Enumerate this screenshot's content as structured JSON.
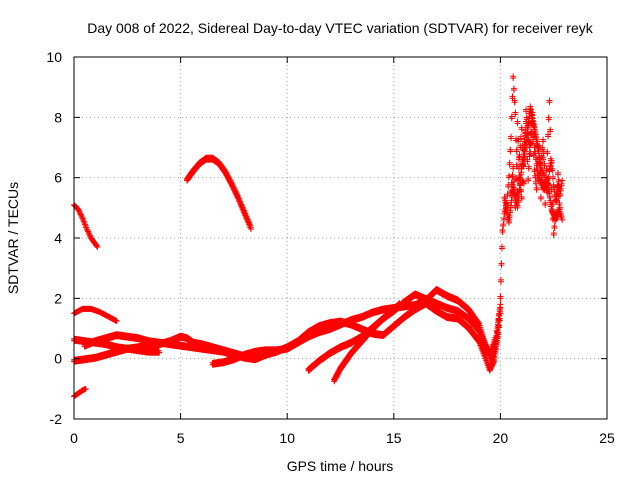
{
  "chart_data": {
    "type": "scatter",
    "title": "Day 008 of 2022, Sidereal Day-to-day VTEC variation (SDTVAR) for receiver reyk",
    "xlabel": "GPS time / hours",
    "ylabel": "SDTVAR / TECUs",
    "xlim": [
      0,
      25
    ],
    "ylim": [
      -2,
      10
    ],
    "xticks": [
      0,
      5,
      10,
      15,
      20,
      25
    ],
    "yticks": [
      -2,
      0,
      2,
      4,
      6,
      8,
      10
    ],
    "grid": true,
    "marker": "+",
    "color": "#ff0000",
    "segments": [
      [
        [
          0.0,
          5.1
        ],
        [
          0.2,
          4.95
        ],
        [
          0.4,
          4.65
        ],
        [
          0.6,
          4.3
        ],
        [
          0.8,
          4.0
        ],
        [
          1.0,
          3.8
        ],
        [
          1.1,
          3.7
        ]
      ],
      [
        [
          0.0,
          -1.25
        ],
        [
          0.2,
          -1.15
        ],
        [
          0.4,
          -1.05
        ],
        [
          0.55,
          -1.0
        ]
      ],
      [
        [
          0.0,
          1.5
        ],
        [
          0.4,
          1.65
        ],
        [
          0.8,
          1.65
        ],
        [
          1.2,
          1.55
        ],
        [
          1.6,
          1.4
        ],
        [
          2.0,
          1.25
        ]
      ],
      [
        [
          0.0,
          0.6
        ],
        [
          0.5,
          0.55
        ],
        [
          1.0,
          0.5
        ],
        [
          1.5,
          0.45
        ],
        [
          2.0,
          0.35
        ],
        [
          2.5,
          0.3
        ],
        [
          3.0,
          0.25
        ],
        [
          3.5,
          0.2
        ],
        [
          4.0,
          0.2
        ]
      ],
      [
        [
          0.0,
          -0.1
        ],
        [
          0.5,
          -0.05
        ],
        [
          1.0,
          0.0
        ],
        [
          1.5,
          0.1
        ],
        [
          2.0,
          0.2
        ],
        [
          2.5,
          0.3
        ],
        [
          3.0,
          0.35
        ],
        [
          3.5,
          0.4
        ],
        [
          4.0,
          0.45
        ],
        [
          4.5,
          0.55
        ],
        [
          5.0,
          0.7
        ],
        [
          5.3,
          0.65
        ],
        [
          5.6,
          0.5
        ],
        [
          6.0,
          0.45
        ],
        [
          6.5,
          0.35
        ],
        [
          7.0,
          0.25
        ],
        [
          7.5,
          0.15
        ],
        [
          8.0,
          0.05
        ],
        [
          8.5,
          -0.05
        ]
      ],
      [
        [
          0.5,
          0.4
        ],
        [
          1.0,
          0.55
        ],
        [
          1.5,
          0.65
        ],
        [
          2.0,
          0.75
        ],
        [
          2.5,
          0.7
        ],
        [
          3.0,
          0.65
        ],
        [
          3.5,
          0.55
        ],
        [
          4.0,
          0.5
        ],
        [
          4.5,
          0.45
        ],
        [
          5.0,
          0.4
        ],
        [
          5.5,
          0.35
        ],
        [
          6.0,
          0.3
        ],
        [
          6.5,
          0.25
        ],
        [
          7.0,
          0.2
        ],
        [
          7.5,
          0.1
        ],
        [
          8.0,
          0.0
        ],
        [
          8.5,
          -0.05
        ],
        [
          9.0,
          0.1
        ],
        [
          9.5,
          0.2
        ],
        [
          10.0,
          0.35
        ],
        [
          10.5,
          0.55
        ],
        [
          11.0,
          0.85
        ],
        [
          11.5,
          1.05
        ],
        [
          12.0,
          1.15
        ],
        [
          12.5,
          1.2
        ],
        [
          13.0,
          1.1
        ],
        [
          13.5,
          0.95
        ],
        [
          14.0,
          0.8
        ],
        [
          14.5,
          0.75
        ],
        [
          15.0,
          1.05
        ],
        [
          15.5,
          1.35
        ],
        [
          16.0,
          1.6
        ],
        [
          16.5,
          1.8
        ],
        [
          17.0,
          1.55
        ],
        [
          17.5,
          1.35
        ],
        [
          18.0,
          1.3
        ],
        [
          18.5,
          1.0
        ],
        [
          19.0,
          0.55
        ],
        [
          19.3,
          0.0
        ],
        [
          19.5,
          -0.4
        ],
        [
          19.7,
          -0.1
        ],
        [
          19.9,
          0.8
        ],
        [
          20.0,
          1.5
        ]
      ],
      [
        [
          6.5,
          -0.2
        ],
        [
          7.0,
          -0.15
        ],
        [
          7.5,
          -0.05
        ],
        [
          8.0,
          0.1
        ],
        [
          8.5,
          0.2
        ],
        [
          9.0,
          0.25
        ],
        [
          9.5,
          0.25
        ],
        [
          10.0,
          0.3
        ],
        [
          10.5,
          0.5
        ],
        [
          11.0,
          0.7
        ],
        [
          11.5,
          0.85
        ],
        [
          12.0,
          0.95
        ],
        [
          12.5,
          1.1
        ],
        [
          13.0,
          1.25
        ],
        [
          13.5,
          1.35
        ],
        [
          14.0,
          1.5
        ],
        [
          14.5,
          1.6
        ],
        [
          15.0,
          1.65
        ],
        [
          15.5,
          1.7
        ],
        [
          16.0,
          1.75
        ],
        [
          16.5,
          1.9
        ],
        [
          17.0,
          2.25
        ],
        [
          17.5,
          2.05
        ],
        [
          18.0,
          1.9
        ],
        [
          18.5,
          1.6
        ],
        [
          19.0,
          1.1
        ],
        [
          19.3,
          0.4
        ],
        [
          19.6,
          -0.1
        ],
        [
          19.8,
          0.5
        ],
        [
          20.0,
          1.8
        ]
      ],
      [
        [
          11.0,
          -0.4
        ],
        [
          11.5,
          -0.1
        ],
        [
          12.0,
          0.15
        ],
        [
          12.5,
          0.35
        ],
        [
          13.0,
          0.5
        ],
        [
          13.5,
          0.7
        ],
        [
          14.0,
          1.0
        ],
        [
          14.5,
          1.3
        ],
        [
          15.0,
          1.55
        ],
        [
          15.5,
          1.85
        ],
        [
          16.0,
          2.1
        ],
        [
          16.5,
          1.95
        ],
        [
          17.0,
          1.8
        ],
        [
          17.5,
          1.65
        ],
        [
          18.0,
          1.55
        ],
        [
          18.5,
          1.3
        ],
        [
          19.0,
          0.9
        ],
        [
          19.5,
          0.1
        ],
        [
          19.8,
          0.7
        ],
        [
          20.0,
          1.7
        ]
      ],
      [
        [
          12.2,
          -0.75
        ],
        [
          12.5,
          -0.35
        ],
        [
          13.0,
          0.15
        ],
        [
          13.5,
          0.55
        ],
        [
          14.0,
          0.95
        ],
        [
          14.5,
          1.3
        ],
        [
          15.0,
          1.6
        ],
        [
          15.3,
          1.8
        ]
      ],
      [
        [
          5.3,
          5.9
        ],
        [
          5.6,
          6.2
        ],
        [
          5.9,
          6.45
        ],
        [
          6.2,
          6.6
        ],
        [
          6.5,
          6.6
        ],
        [
          6.8,
          6.45
        ],
        [
          7.1,
          6.15
        ],
        [
          7.4,
          5.75
        ],
        [
          7.7,
          5.3
        ],
        [
          8.0,
          4.8
        ],
        [
          8.3,
          4.3
        ]
      ],
      [
        [
          20.0,
          2.0
        ],
        [
          20.05,
          3.1
        ],
        [
          20.1,
          4.2
        ],
        [
          20.2,
          4.8
        ],
        [
          20.3,
          5.1
        ],
        [
          20.4,
          6.0
        ],
        [
          20.5,
          7.3
        ],
        [
          20.6,
          9.3
        ],
        [
          20.7,
          8.1
        ],
        [
          20.8,
          5.5
        ],
        [
          20.9,
          6.7
        ],
        [
          21.0,
          7.6
        ],
        [
          21.1,
          5.8
        ],
        [
          21.2,
          8.2
        ],
        [
          21.3,
          7.4
        ],
        [
          21.4,
          6.8
        ],
        [
          21.5,
          7.8
        ],
        [
          21.6,
          6.2
        ],
        [
          21.7,
          5.6
        ],
        [
          21.8,
          7.0
        ],
        [
          21.9,
          5.3
        ],
        [
          22.0,
          6.6
        ],
        [
          22.1,
          5.1
        ],
        [
          22.2,
          6.8
        ],
        [
          22.3,
          8.5
        ],
        [
          22.4,
          5.6
        ],
        [
          22.5,
          4.1
        ],
        [
          22.6,
          4.8
        ],
        [
          22.7,
          6.1
        ],
        [
          22.8,
          5.4
        ],
        [
          22.9,
          5.9
        ]
      ],
      [
        [
          20.5,
          5.5
        ],
        [
          20.6,
          6.3
        ],
        [
          20.7,
          5.0
        ],
        [
          20.8,
          7.8
        ],
        [
          20.9,
          6.0
        ],
        [
          21.0,
          5.3
        ],
        [
          21.1,
          6.9
        ],
        [
          21.2,
          7.8
        ],
        [
          21.3,
          5.9
        ],
        [
          21.4,
          7.1
        ],
        [
          21.5,
          8.1
        ],
        [
          21.6,
          7.0
        ],
        [
          21.7,
          6.4
        ],
        [
          21.8,
          5.9
        ],
        [
          21.9,
          6.4
        ],
        [
          22.0,
          7.2
        ],
        [
          22.1,
          6.0
        ],
        [
          22.2,
          5.5
        ],
        [
          22.3,
          6.2
        ],
        [
          22.4,
          6.5
        ],
        [
          22.5,
          5.7
        ],
        [
          22.6,
          5.2
        ],
        [
          22.7,
          5.7
        ],
        [
          22.8,
          4.8
        ],
        [
          22.9,
          4.6
        ]
      ],
      [
        [
          20.2,
          5.3
        ],
        [
          20.4,
          4.5
        ],
        [
          20.6,
          5.7
        ],
        [
          20.8,
          5.0
        ],
        [
          21.0,
          6.3
        ],
        [
          21.2,
          7.1
        ],
        [
          21.4,
          8.3
        ],
        [
          21.6,
          7.6
        ],
        [
          21.8,
          6.8
        ],
        [
          22.0,
          5.6
        ],
        [
          22.2,
          5.9
        ],
        [
          22.4,
          4.9
        ],
        [
          22.6,
          4.6
        ],
        [
          22.8,
          5.0
        ]
      ]
    ]
  }
}
